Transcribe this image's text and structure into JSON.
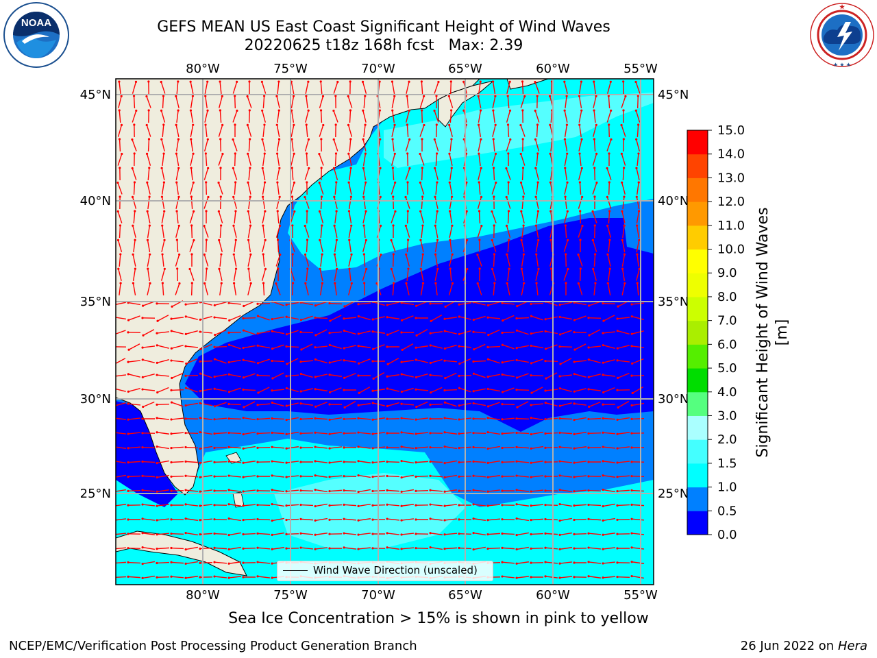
{
  "header": {
    "title_line1": "GEFS MEAN US East Coast Significant Height of Wind Waves",
    "title_line2": "20220625 t18z 168h fcst   Max: 2.39"
  },
  "logos": {
    "left": {
      "name": "noaa-logo",
      "text": "NOAA",
      "ring_text": "NATIONAL OCEANIC AND ATMOSPHERIC ADMINISTRATION · U.S. DEPARTMENT OF COMMERCE"
    },
    "right": {
      "name": "nws-logo",
      "ring_text": "NATIONAL WEATHER SERVICE"
    }
  },
  "map": {
    "lon_labels": [
      "80°W",
      "75°W",
      "70°W",
      "65°W",
      "60°W",
      "55°W"
    ],
    "lat_labels": [
      "45°N",
      "40°N",
      "35°N",
      "30°N",
      "25°N"
    ],
    "extent": {
      "lon_min": -85,
      "lon_max": -54.3,
      "lat_min": 20.3,
      "lat_max": 45.8
    },
    "gridlines": true,
    "legend_text": "Wind Wave Direction (unscaled)",
    "arrow_color": "#ff0000",
    "land_color": "#efedde"
  },
  "colorbar": {
    "label": "Significant Height of Wind Waves [m]",
    "ticks": [
      "0.0",
      "0.5",
      "1.0",
      "1.5",
      "2.0",
      "3.0",
      "4.0",
      "5.0",
      "6.0",
      "7.0",
      "8.0",
      "9.0",
      "10.0",
      "11.0",
      "12.0",
      "13.0",
      "14.0",
      "15.0"
    ],
    "colors": [
      "#0000ff",
      "#0080ff",
      "#00ffff",
      "#44ffff",
      "#aaffff",
      "#55ff7f",
      "#00dd00",
      "#55ee00",
      "#aaee00",
      "#ccff00",
      "#eeff00",
      "#ffff00",
      "#ffcc00",
      "#ff9900",
      "#ff7700",
      "#ff4400",
      "#ff0000"
    ]
  },
  "caption": "Sea Ice Concentration > 15% is shown in pink to yellow",
  "footer": {
    "left": "NCEP/EMC/Verification Post Processing Product Generation Branch",
    "right_date": "26 Jun 2022 on",
    "right_host": "Hera"
  }
}
